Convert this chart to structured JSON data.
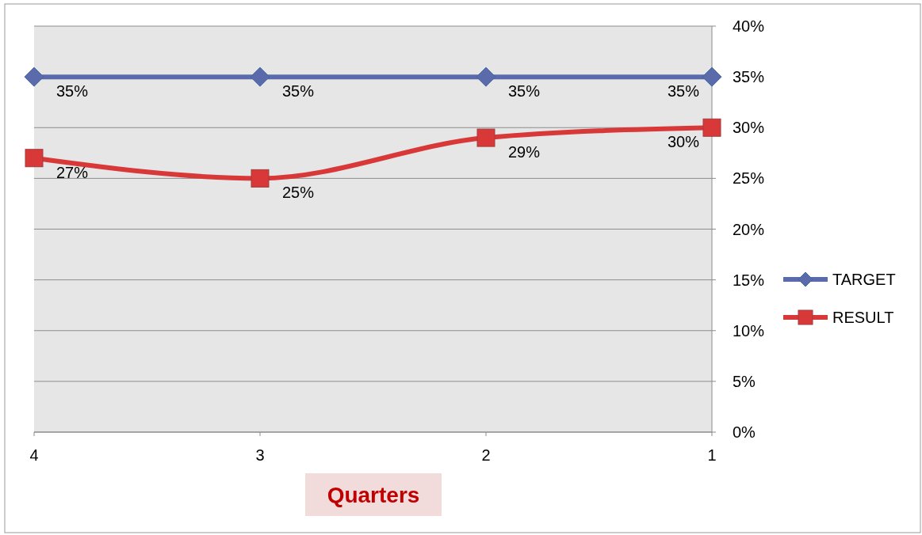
{
  "chart_data": {
    "type": "line",
    "xlabel": "Quarters",
    "categories": [
      "4",
      "3",
      "2",
      "1"
    ],
    "series": [
      {
        "name": "TARGET",
        "color": "#5a6aaa",
        "marker": "diamond",
        "values": [
          35,
          35,
          35,
          35
        ],
        "value_labels": [
          "35%",
          "35%",
          "35%",
          "35%"
        ]
      },
      {
        "name": "RESULT",
        "color": "#d83838",
        "marker": "square",
        "values": [
          27,
          25,
          29,
          30
        ],
        "value_labels": [
          "27%",
          "25%",
          "29%",
          "30%"
        ]
      }
    ],
    "ylim": [
      0,
      40
    ],
    "yticks": [
      {
        "value": 0,
        "label": "0%"
      },
      {
        "value": 5,
        "label": "5%"
      },
      {
        "value": 10,
        "label": "10%"
      },
      {
        "value": 15,
        "label": "15%"
      },
      {
        "value": 20,
        "label": "20%"
      },
      {
        "value": 25,
        "label": "25%"
      },
      {
        "value": 30,
        "label": "30%"
      },
      {
        "value": 35,
        "label": "35%"
      },
      {
        "value": 40,
        "label": "40%"
      }
    ],
    "grid": "y",
    "legend": "right"
  }
}
